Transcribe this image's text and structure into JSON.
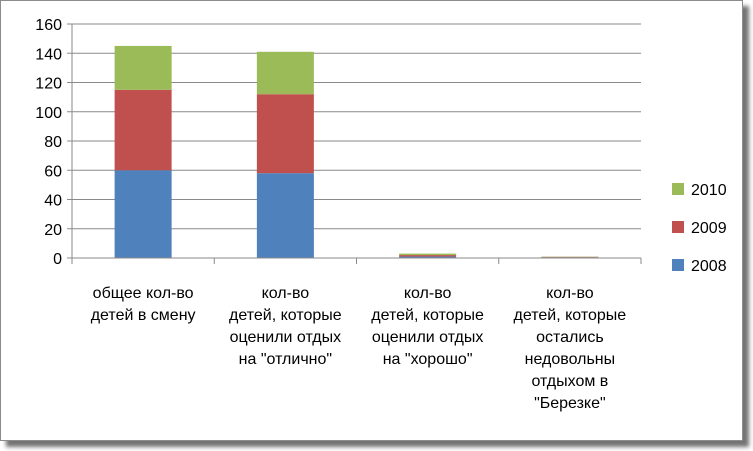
{
  "chart_data": {
    "type": "bar",
    "stacked": true,
    "categories": [
      [
        "общее кол-во",
        "детей в смену"
      ],
      [
        "кол-во",
        "детей, которые",
        "оценили отдых",
        "на \"отлично\""
      ],
      [
        "кол-во",
        "детей, которые",
        "оценили отдых",
        "на \"хорошо\""
      ],
      [
        "кол-во",
        "детей, которые",
        "остались",
        "недовольны",
        "отдыхом в",
        "\"Березке\""
      ]
    ],
    "series": [
      {
        "name": "2008",
        "color": "#4f81bd",
        "values": [
          60,
          58,
          1,
          0.5
        ]
      },
      {
        "name": "2009",
        "color": "#c0504d",
        "values": [
          55,
          54,
          1,
          0.3
        ]
      },
      {
        "name": "2010",
        "color": "#9bbb59",
        "values": [
          30,
          29,
          1,
          0.2
        ]
      }
    ],
    "ylim": [
      0,
      160
    ],
    "yticks": [
      0,
      20,
      40,
      60,
      80,
      100,
      120,
      140,
      160
    ],
    "grid": true,
    "legend": "right"
  }
}
